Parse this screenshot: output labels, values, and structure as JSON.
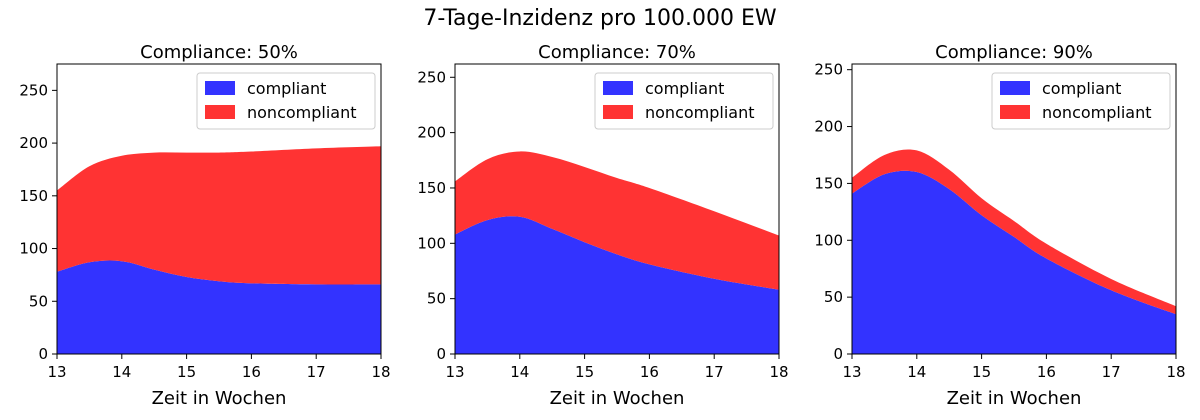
{
  "suptitle": "7-Tage-Inzidenz pro 100.000 EW",
  "colors": {
    "compliant": "#3333ff",
    "noncompliant": "#ff3333"
  },
  "chart_data": [
    {
      "type": "area",
      "stacked": true,
      "title": "Compliance: 50%",
      "xlabel": "Zeit in Wochen",
      "ylabel": "",
      "xlim": [
        13,
        18
      ],
      "ylim": [
        0,
        275
      ],
      "xticks": [
        13,
        14,
        15,
        16,
        17,
        18
      ],
      "yticks": [
        0,
        50,
        100,
        150,
        200,
        250
      ],
      "legend_position": "top-right",
      "x": [
        13,
        13.5,
        14,
        14.5,
        15,
        15.5,
        16,
        17,
        18
      ],
      "series": [
        {
          "name": "compliant",
          "color": "#3333ff",
          "values": [
            78,
            87,
            88,
            80,
            73,
            69,
            67,
            66,
            66
          ]
        },
        {
          "name": "noncompliant",
          "color": "#ff3333",
          "values": [
            77,
            91,
            100,
            111,
            118,
            122,
            125,
            129,
            131
          ]
        }
      ]
    },
    {
      "type": "area",
      "stacked": true,
      "title": "Compliance: 70%",
      "xlabel": "Zeit in Wochen",
      "ylabel": "",
      "xlim": [
        13,
        18
      ],
      "ylim": [
        0,
        262
      ],
      "xticks": [
        13,
        14,
        15,
        16,
        17,
        18
      ],
      "yticks": [
        0,
        50,
        100,
        150,
        200,
        250
      ],
      "legend_position": "top-right",
      "x": [
        13,
        13.5,
        14,
        14.5,
        15,
        15.5,
        16,
        17,
        18
      ],
      "series": [
        {
          "name": "compliant",
          "color": "#3333ff",
          "values": [
            108,
            121,
            124,
            113,
            101,
            90,
            81,
            68,
            58
          ]
        },
        {
          "name": "noncompliant",
          "color": "#ff3333",
          "values": [
            48,
            55,
            59,
            65,
            68,
            69,
            69,
            61,
            49
          ]
        }
      ]
    },
    {
      "type": "area",
      "stacked": true,
      "title": "Compliance: 90%",
      "xlabel": "Zeit in Wochen",
      "ylabel": "",
      "xlim": [
        13,
        18
      ],
      "ylim": [
        0,
        255
      ],
      "xticks": [
        13,
        14,
        15,
        16,
        17,
        18
      ],
      "yticks": [
        0,
        50,
        100,
        150,
        200,
        250
      ],
      "legend_position": "top-right",
      "x": [
        13,
        13.5,
        14,
        14.5,
        15,
        15.5,
        16,
        17,
        18
      ],
      "series": [
        {
          "name": "compliant",
          "color": "#3333ff",
          "values": [
            141,
            158,
            160,
            145,
            122,
            103,
            84,
            56,
            35
          ]
        },
        {
          "name": "noncompliant",
          "color": "#ff3333",
          "values": [
            14,
            17,
            19,
            17,
            15,
            14,
            13,
            10,
            7
          ]
        }
      ]
    }
  ]
}
